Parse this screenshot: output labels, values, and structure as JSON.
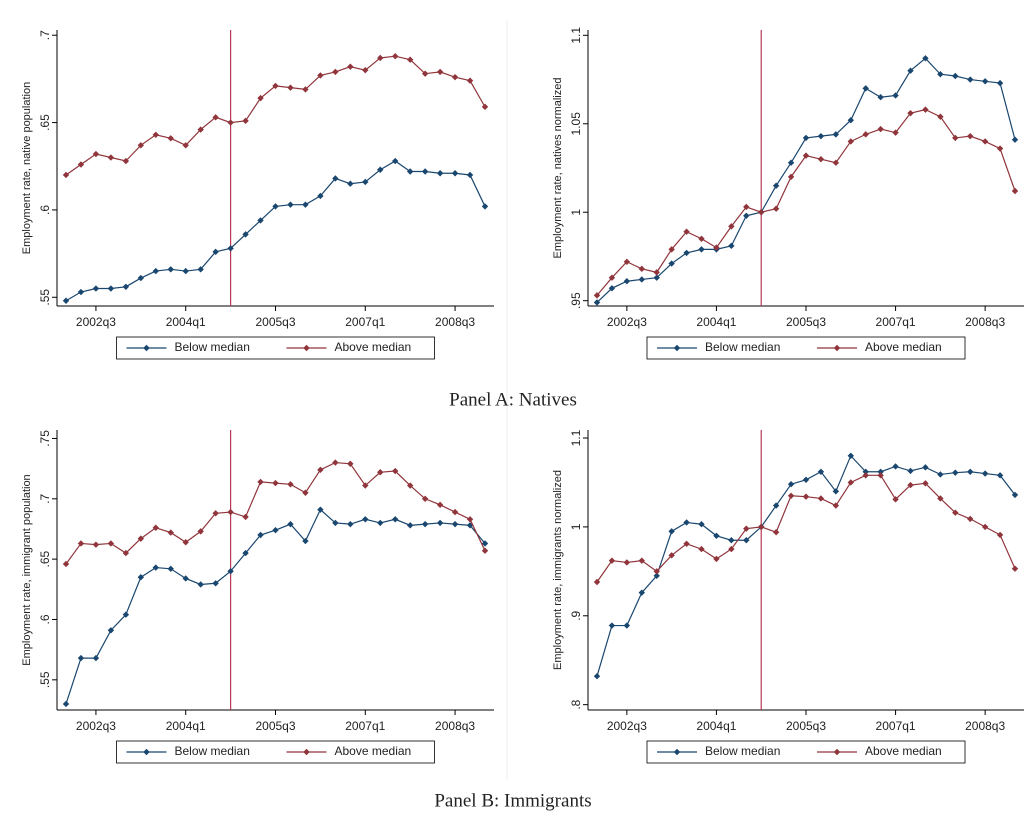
{
  "panel_labels": [
    "Panel A: Natives",
    "Panel B: Immigrants"
  ],
  "chart_data": [
    {
      "type": "line",
      "y_label": "Employment rate, native population",
      "categories": [
        null,
        null,
        "2002q3",
        null,
        null,
        null,
        null,
        null,
        "2004q1",
        null,
        null,
        null,
        null,
        null,
        "2005q3",
        null,
        null,
        null,
        null,
        null,
        "2007q1",
        null,
        null,
        null,
        null,
        null,
        "2008q3",
        null,
        null
      ],
      "ylim": [
        0.545,
        0.703
      ],
      "yticks": [
        {
          "value": 0.55,
          "label": ".55"
        },
        {
          "value": 0.6,
          "label": ".6"
        },
        {
          "value": 0.65,
          "label": ".65"
        },
        {
          "value": 0.7,
          "label": ".7"
        }
      ],
      "reference_line": {
        "index": 11,
        "color": "#b73a55"
      },
      "legend": "bottom",
      "series": [
        {
          "name": "Below median",
          "color": "#1a476f",
          "values": [
            0.548,
            0.553,
            0.555,
            0.555,
            0.556,
            0.561,
            0.565,
            0.566,
            0.565,
            0.566,
            0.576,
            0.578,
            0.586,
            0.594,
            0.602,
            0.603,
            0.603,
            0.608,
            0.618,
            0.615,
            0.616,
            0.623,
            0.628,
            0.622,
            0.622,
            0.621,
            0.621,
            0.62,
            0.602
          ]
        },
        {
          "name": "Above median",
          "color": "#90353b",
          "values": [
            0.62,
            0.626,
            0.632,
            0.63,
            0.628,
            0.637,
            0.643,
            0.641,
            0.637,
            0.646,
            0.653,
            0.65,
            0.651,
            0.664,
            0.671,
            0.67,
            0.669,
            0.677,
            0.679,
            0.682,
            0.68,
            0.687,
            0.688,
            0.686,
            0.678,
            0.679,
            0.676,
            0.674,
            0.659
          ]
        }
      ]
    },
    {
      "type": "line",
      "y_label": "Employment rate, natives normalized",
      "categories": [
        null,
        null,
        "2002q3",
        null,
        null,
        null,
        null,
        null,
        "2004q1",
        null,
        null,
        null,
        null,
        null,
        "2005q3",
        null,
        null,
        null,
        null,
        null,
        "2007q1",
        null,
        null,
        null,
        null,
        null,
        "2008q3",
        null,
        null
      ],
      "ylim": [
        0.947,
        1.103
      ],
      "yticks": [
        {
          "value": 0.95,
          "label": ".95"
        },
        1,
        1.05,
        1.1
      ],
      "reference_line": {
        "index": 11,
        "color": "#b73a55"
      },
      "legend": "bottom",
      "series": [
        {
          "name": "Below median",
          "color": "#1a476f",
          "values": [
            0.949,
            0.957,
            0.961,
            0.962,
            0.963,
            0.971,
            0.977,
            0.979,
            0.979,
            0.981,
            0.998,
            1,
            1.015,
            1.028,
            1.042,
            1.043,
            1.044,
            1.052,
            1.07,
            1.065,
            1.066,
            1.08,
            1.087,
            1.078,
            1.077,
            1.075,
            1.074,
            1.073,
            1.041
          ]
        },
        {
          "name": "Above median",
          "color": "#90353b",
          "values": [
            0.953,
            0.963,
            0.972,
            0.968,
            0.966,
            0.979,
            0.989,
            0.985,
            0.98,
            0.992,
            1.003,
            1,
            1.002,
            1.02,
            1.032,
            1.03,
            1.028,
            1.04,
            1.044,
            1.047,
            1.045,
            1.056,
            1.058,
            1.054,
            1.042,
            1.043,
            1.04,
            1.036,
            1.012
          ]
        }
      ]
    },
    {
      "type": "line",
      "y_label": "Employment rate, immigrant population",
      "categories": [
        null,
        null,
        "2002q3",
        null,
        null,
        null,
        null,
        null,
        "2004q1",
        null,
        null,
        null,
        null,
        null,
        "2005q3",
        null,
        null,
        null,
        null,
        null,
        "2007q1",
        null,
        null,
        null,
        null,
        null,
        "2008q3",
        null,
        null
      ],
      "ylim": [
        0.525,
        0.757
      ],
      "yticks": [
        {
          "value": 0.55,
          "label": ".55"
        },
        {
          "value": 0.6,
          "label": ".6"
        },
        {
          "value": 0.65,
          "label": ".65"
        },
        {
          "value": 0.7,
          "label": ".7"
        },
        {
          "value": 0.75,
          "label": ".75"
        }
      ],
      "reference_line": {
        "index": 11,
        "color": "#b73a55"
      },
      "legend": "bottom",
      "series": [
        {
          "name": "Below median",
          "color": "#1a476f",
          "values": [
            0.53,
            0.568,
            0.568,
            0.591,
            0.604,
            0.635,
            0.643,
            0.642,
            0.634,
            0.629,
            0.63,
            0.64,
            0.655,
            0.67,
            0.674,
            0.679,
            0.665,
            0.691,
            0.68,
            0.679,
            0.683,
            0.68,
            0.683,
            0.678,
            0.679,
            0.68,
            0.679,
            0.678,
            0.663
          ]
        },
        {
          "name": "Above median",
          "color": "#90353b",
          "values": [
            0.646,
            0.663,
            0.662,
            0.663,
            0.655,
            0.667,
            0.676,
            0.672,
            0.664,
            0.673,
            0.688,
            0.689,
            0.685,
            0.714,
            0.713,
            0.712,
            0.705,
            0.724,
            0.73,
            0.729,
            0.711,
            0.722,
            0.723,
            0.711,
            0.7,
            0.695,
            0.689,
            0.683,
            0.657
          ]
        }
      ]
    },
    {
      "type": "line",
      "y_label": "Employment rate, immigrants normalized",
      "categories": [
        null,
        null,
        "2002q3",
        null,
        null,
        null,
        null,
        null,
        "2004q1",
        null,
        null,
        null,
        null,
        null,
        "2005q3",
        null,
        null,
        null,
        null,
        null,
        "2007q1",
        null,
        null,
        null,
        null,
        null,
        "2008q3",
        null,
        null
      ],
      "ylim": [
        0.794,
        1.109
      ],
      "yticks": [
        {
          "value": 0.8,
          "label": ".8"
        },
        {
          "value": 0.9,
          "label": ".9"
        },
        1,
        1.1
      ],
      "reference_line": {
        "index": 11,
        "color": "#b73a55"
      },
      "legend": "bottom",
      "series": [
        {
          "name": "Below median",
          "color": "#1a476f",
          "values": [
            0.832,
            0.889,
            0.889,
            0.926,
            0.945,
            0.995,
            1.005,
            1.003,
            0.99,
            0.985,
            0.985,
            1,
            1.024,
            1.048,
            1.053,
            1.062,
            1.04,
            1.08,
            1.062,
            1.062,
            1.068,
            1.063,
            1.067,
            1.059,
            1.061,
            1.062,
            1.06,
            1.058,
            1.036
          ]
        },
        {
          "name": "Above median",
          "color": "#90353b",
          "values": [
            0.938,
            0.962,
            0.96,
            0.962,
            0.95,
            0.968,
            0.981,
            0.975,
            0.964,
            0.975,
            0.998,
            1,
            0.994,
            1.035,
            1.034,
            1.032,
            1.024,
            1.05,
            1.058,
            1.058,
            1.031,
            1.047,
            1.049,
            1.032,
            1.016,
            1.009,
            1.0,
            0.991,
            0.953
          ]
        }
      ]
    }
  ]
}
